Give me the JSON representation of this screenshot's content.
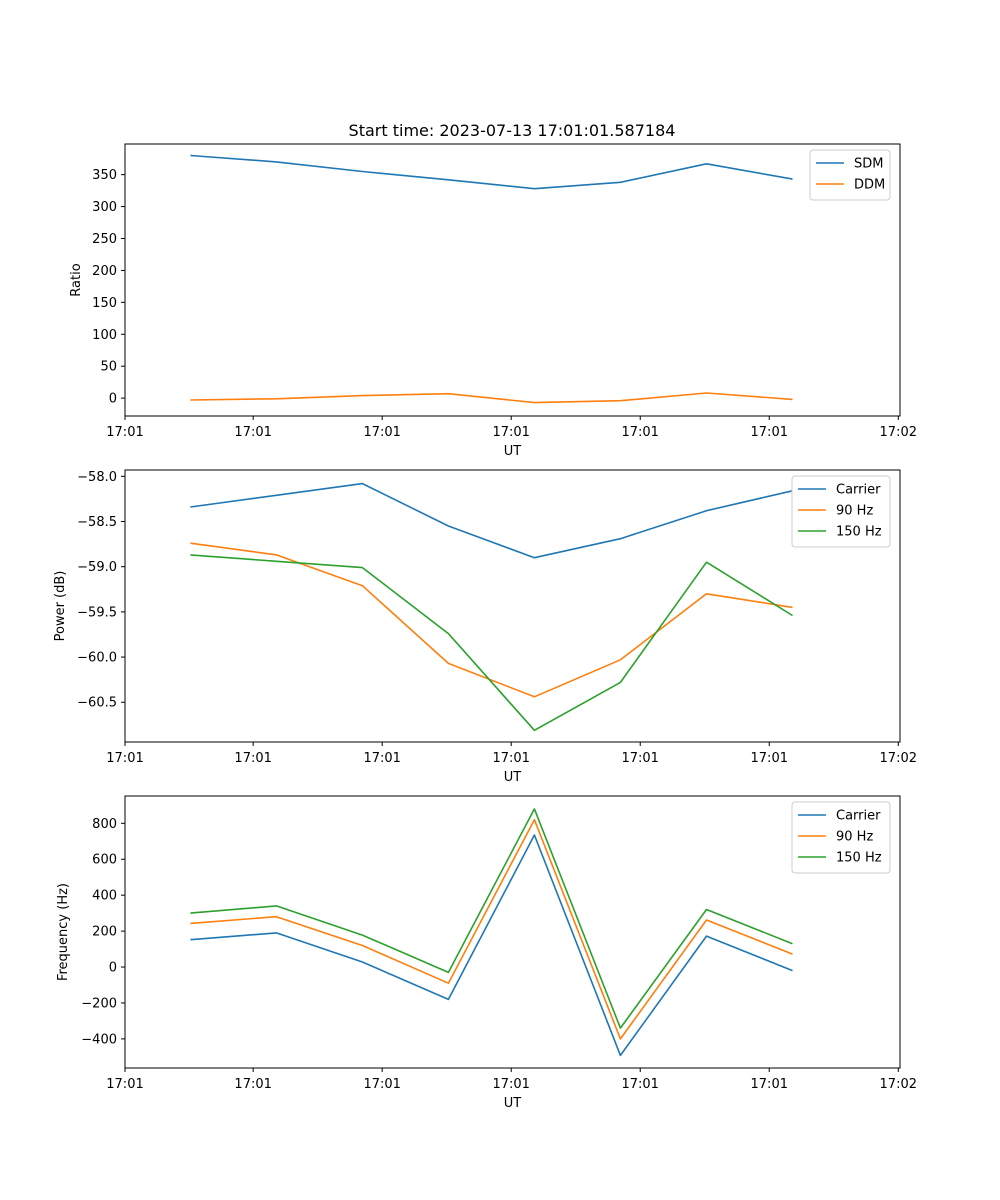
{
  "chart_data": [
    {
      "type": "line",
      "title": "Start time: 2023-07-13 17:01:01.587184",
      "xlabel": "UT",
      "ylabel": "Ratio",
      "x_tick_labels": [
        "17:01",
        "17:01",
        "17:01",
        "17:01",
        "17:01",
        "17:01",
        "17:02"
      ],
      "x": [
        1,
        2,
        3,
        4,
        5,
        6,
        7,
        8
      ],
      "xlim": [
        0.24,
        9.25
      ],
      "x_tick_positions": [
        0.24,
        1.73,
        3.23,
        4.73,
        6.23,
        7.73,
        9.23
      ],
      "ylim": [
        -28,
        398
      ],
      "y_ticks": [
        0,
        50,
        100,
        150,
        200,
        250,
        300,
        350
      ],
      "y_tick_labels": [
        "0",
        "50",
        "100",
        "150",
        "200",
        "250",
        "300",
        "350"
      ],
      "legend_position": "top-right",
      "series": [
        {
          "name": "SDM",
          "color": "#1f77b4",
          "values": [
            380,
            370,
            355,
            342,
            328,
            338,
            367,
            343
          ]
        },
        {
          "name": "DDM",
          "color": "#ff7f0e",
          "values": [
            -3,
            -1,
            4,
            7,
            -7,
            -4,
            8,
            -2
          ]
        }
      ]
    },
    {
      "type": "line",
      "title": "",
      "xlabel": "UT",
      "ylabel": "Power (dB)",
      "x_tick_labels": [
        "17:01",
        "17:01",
        "17:01",
        "17:01",
        "17:01",
        "17:01",
        "17:02"
      ],
      "x": [
        1,
        2,
        3,
        4,
        5,
        6,
        7,
        8
      ],
      "xlim": [
        0.24,
        9.25
      ],
      "x_tick_positions": [
        0.24,
        1.73,
        3.23,
        4.73,
        6.23,
        7.73,
        9.23
      ],
      "ylim": [
        -60.94,
        -57.93
      ],
      "y_ticks": [
        -60.5,
        -60.0,
        -59.5,
        -59.0,
        -58.5,
        -58.0
      ],
      "y_tick_labels": [
        "−60.5",
        "−60.0",
        "−59.5",
        "−59.0",
        "−58.5",
        "−58.0"
      ],
      "legend_position": "top-right",
      "series": [
        {
          "name": "Carrier",
          "color": "#1f77b4",
          "values": [
            -58.34,
            -58.21,
            -58.08,
            -58.55,
            -58.9,
            -58.69,
            -58.38,
            -58.16
          ]
        },
        {
          "name": "90 Hz",
          "color": "#ff7f0e",
          "values": [
            -58.74,
            -58.87,
            -59.21,
            -60.07,
            -60.44,
            -60.03,
            -59.3,
            -59.45
          ]
        },
        {
          "name": "150 Hz",
          "color": "#2ca02c",
          "values": [
            -58.87,
            -58.94,
            -59.01,
            -59.74,
            -60.81,
            -60.28,
            -58.95,
            -59.54
          ]
        }
      ]
    },
    {
      "type": "line",
      "title": "",
      "xlabel": "UT",
      "ylabel": "Frequency (Hz)",
      "x_tick_labels": [
        "17:01",
        "17:01",
        "17:01",
        "17:01",
        "17:01",
        "17:01",
        "17:02"
      ],
      "x": [
        1,
        2,
        3,
        4,
        5,
        6,
        7,
        8
      ],
      "xlim": [
        0.24,
        9.25
      ],
      "x_tick_positions": [
        0.24,
        1.73,
        3.23,
        4.73,
        6.23,
        7.73,
        9.23
      ],
      "ylim": [
        -562,
        952
      ],
      "y_ticks": [
        -400,
        -200,
        0,
        200,
        400,
        600,
        800
      ],
      "y_tick_labels": [
        "−400",
        "−200",
        "0",
        "200",
        "400",
        "600",
        "800"
      ],
      "legend_position": "top-right",
      "series": [
        {
          "name": "Carrier",
          "color": "#1f77b4",
          "values": [
            152,
            190,
            28,
            -180,
            735,
            -492,
            172,
            -20
          ]
        },
        {
          "name": "90 Hz",
          "color": "#ff7f0e",
          "values": [
            243,
            280,
            120,
            -90,
            820,
            -400,
            262,
            72
          ]
        },
        {
          "name": "150 Hz",
          "color": "#2ca02c",
          "values": [
            300,
            340,
            178,
            -30,
            880,
            -340,
            320,
            130
          ]
        }
      ]
    }
  ]
}
